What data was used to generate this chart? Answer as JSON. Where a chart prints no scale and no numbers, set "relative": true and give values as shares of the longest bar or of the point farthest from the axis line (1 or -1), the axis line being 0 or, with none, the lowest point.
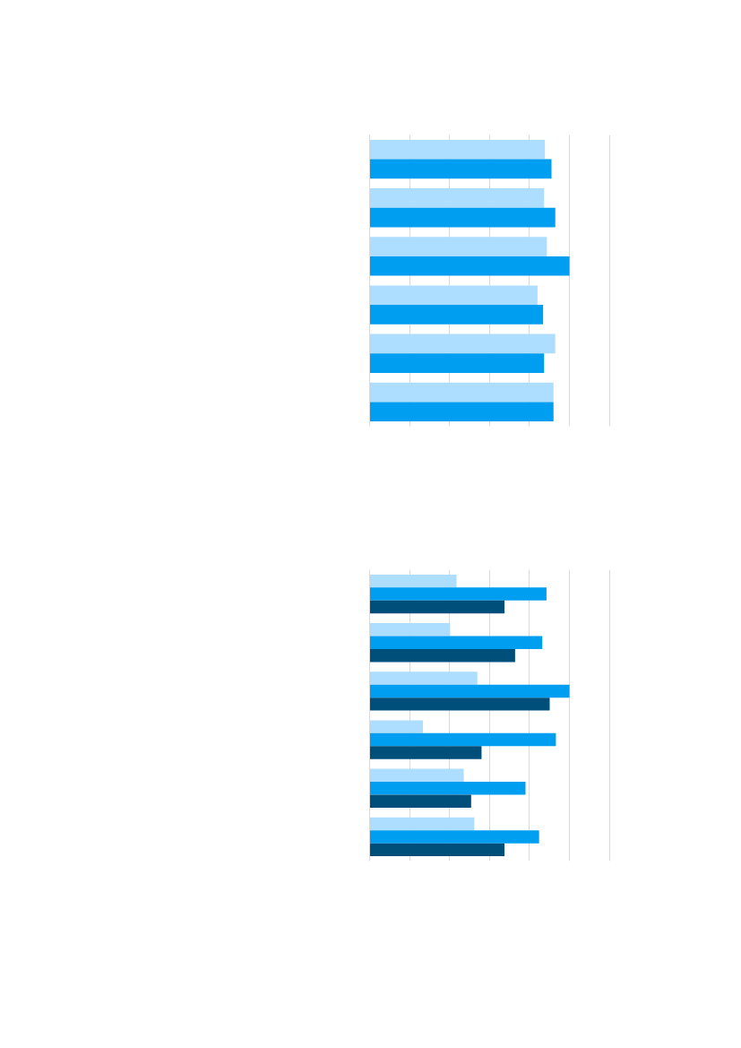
{
  "chart_data": [
    {
      "type": "bar",
      "orientation": "horizontal",
      "relative": true,
      "grid": "x",
      "tick_labels": false,
      "categories": [
        null,
        null,
        null,
        null,
        null,
        null
      ],
      "series": [
        {
          "color": "#addeff",
          "values": [
            0.877,
            0.873,
            0.887,
            0.84,
            0.929,
            0.92
          ]
        },
        {
          "color": "#009ef0",
          "values": [
            0.91,
            0.929,
            1,
            0.868,
            0.873,
            0.92
          ]
        }
      ]
    },
    {
      "type": "bar",
      "orientation": "horizontal",
      "relative": true,
      "grid": "x",
      "tick_labels": false,
      "categories": [
        null,
        null,
        null,
        null,
        null,
        null
      ],
      "series": [
        {
          "color": "#addeff",
          "values": [
            0.435,
            0.403,
            0.539,
            0.267,
            0.471,
            0.524
          ]
        },
        {
          "color": "#009ef0",
          "values": [
            0.885,
            0.864,
            1,
            0.932,
            0.78,
            0.848
          ]
        },
        {
          "color": "#004e7a",
          "values": [
            0.675,
            0.728,
            0.901,
            0.56,
            0.508,
            0.675
          ]
        }
      ]
    }
  ]
}
